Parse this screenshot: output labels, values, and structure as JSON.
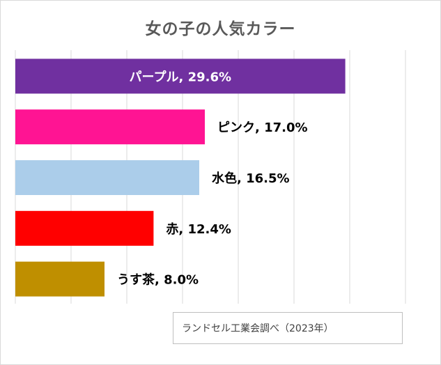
{
  "chart_data": {
    "type": "bar",
    "orientation": "horizontal",
    "title": "女の子の人気カラー",
    "categories": [
      "パープル",
      "ピンク",
      "水色",
      "赤",
      "うす茶"
    ],
    "values": [
      29.6,
      17.0,
      16.5,
      12.4,
      8.0
    ],
    "data_labels": [
      "パープル, 29.6%",
      "ピンク, 17.0%",
      "水色, 16.5%",
      "赤, 12.4%",
      "うす茶, 8.0%"
    ],
    "colors": [
      "#7030a0",
      "#ff1493",
      "#abcdea",
      "#ff0000",
      "#bf8f00"
    ],
    "xlim": [
      0,
      35
    ],
    "grid": true,
    "source": "ランドセル工業会調べ（2023年）"
  }
}
